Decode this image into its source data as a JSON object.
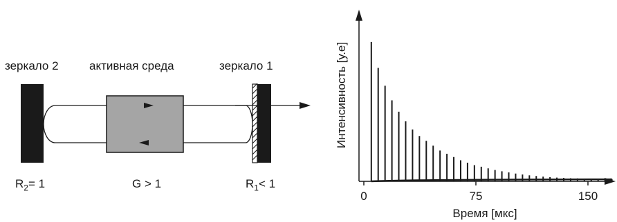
{
  "diagram": {
    "labels": {
      "mirror2": "зеркало 2",
      "active_medium": "активная среда",
      "mirror1": "зеркало 1",
      "R2": "R",
      "R2_sub": "2",
      "R2_rel": "= 1",
      "gain": "G > 1",
      "R1": "R",
      "R1_sub": "1",
      "R1_rel": "< 1"
    }
  },
  "chart_data": {
    "type": "pulse_train",
    "xlabel": "Время [мкс]",
    "ylabel": "Интенсивность [у.е]",
    "x_ticks": [
      "0",
      "75",
      "150"
    ],
    "xlim": [
      0,
      165
    ],
    "ylim": [
      0,
      1.0
    ],
    "first_pulse_time": 5,
    "pulse_period": 4.6,
    "pulse_peaks": [
      0.86,
      0.7,
      0.59,
      0.5,
      0.43,
      0.37,
      0.32,
      0.28,
      0.25,
      0.22,
      0.19,
      0.17,
      0.15,
      0.13,
      0.115,
      0.1,
      0.09,
      0.08,
      0.07,
      0.062,
      0.055,
      0.048,
      0.042,
      0.037,
      0.033,
      0.029,
      0.026,
      0.023,
      0.021,
      0.019,
      0.018,
      0.017,
      0.016,
      0.015,
      0.015,
      0.014
    ],
    "baseline": 0.013
  }
}
